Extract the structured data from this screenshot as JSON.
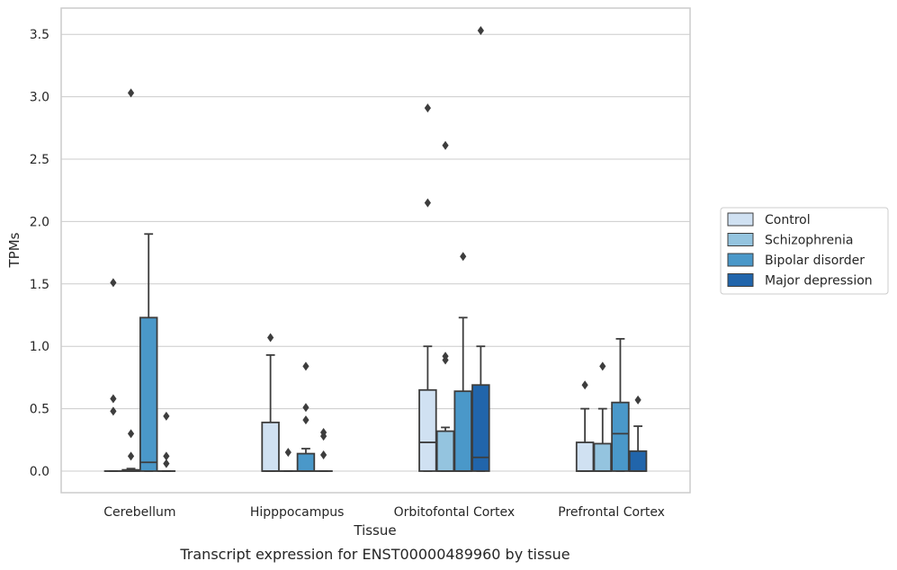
{
  "caption": "Transcript expression for ENST00000489960 by tissue",
  "chart_data": {
    "type": "box",
    "xlabel": "Tissue",
    "ylabel": "TPMs",
    "ylim": [
      -0.17,
      3.72
    ],
    "yticks": [
      0.0,
      0.5,
      1.0,
      1.5,
      2.0,
      2.5,
      3.0,
      3.5
    ],
    "ytick_labels": [
      "0.0",
      "0.5",
      "1.0",
      "1.5",
      "2.0",
      "2.5",
      "3.0",
      "3.5"
    ],
    "grid": "horizontal",
    "legend_position": "right",
    "categories": [
      "Cerebellum",
      "Hipppocampus",
      "Orbitofontal Cortex",
      "Prefrontal Cortex"
    ],
    "series": [
      {
        "name": "Control",
        "color": "#d0e1f2",
        "boxes": [
          {
            "q1": 0.0,
            "median": 0.0,
            "q3": 0.0,
            "whisker_low": 0.0,
            "whisker_high": 0.0,
            "outliers": [
              1.51,
              0.58,
              0.48
            ]
          },
          {
            "q1": 0.0,
            "median": 0.0,
            "q3": 0.39,
            "whisker_low": 0.0,
            "whisker_high": 0.93,
            "outliers": [
              1.07
            ]
          },
          {
            "q1": 0.0,
            "median": 0.23,
            "q3": 0.65,
            "whisker_low": 0.0,
            "whisker_high": 1.0,
            "outliers": [
              2.91,
              2.15
            ]
          },
          {
            "q1": 0.0,
            "median": 0.0,
            "q3": 0.23,
            "whisker_low": 0.0,
            "whisker_high": 0.5,
            "outliers": [
              0.69
            ]
          }
        ]
      },
      {
        "name": "Schizophrenia",
        "color": "#94c4df",
        "boxes": [
          {
            "q1": 0.0,
            "median": 0.0,
            "q3": 0.01,
            "whisker_low": 0.0,
            "whisker_high": 0.02,
            "outliers": [
              3.03,
              0.3,
              0.12
            ]
          },
          {
            "q1": 0.0,
            "median": 0.0,
            "q3": 0.0,
            "whisker_low": 0.0,
            "whisker_high": 0.0,
            "outliers": [
              0.15
            ]
          },
          {
            "q1": 0.0,
            "median": 0.0,
            "q3": 0.32,
            "whisker_low": 0.0,
            "whisker_high": 0.35,
            "outliers": [
              2.61,
              0.92,
              0.89
            ]
          },
          {
            "q1": 0.0,
            "median": 0.0,
            "q3": 0.22,
            "whisker_low": 0.0,
            "whisker_high": 0.5,
            "outliers": [
              0.84
            ]
          }
        ]
      },
      {
        "name": "Bipolar disorder",
        "color": "#4a98c9",
        "boxes": [
          {
            "q1": 0.0,
            "median": 0.07,
            "q3": 1.23,
            "whisker_low": 0.0,
            "whisker_high": 1.9,
            "outliers": []
          },
          {
            "q1": 0.0,
            "median": 0.0,
            "q3": 0.14,
            "whisker_low": 0.0,
            "whisker_high": 0.18,
            "outliers": [
              0.84,
              0.51,
              0.41
            ]
          },
          {
            "q1": 0.0,
            "median": 0.0,
            "q3": 0.64,
            "whisker_low": 0.0,
            "whisker_high": 1.23,
            "outliers": [
              1.72
            ]
          },
          {
            "q1": 0.0,
            "median": 0.3,
            "q3": 0.55,
            "whisker_low": 0.0,
            "whisker_high": 1.06,
            "outliers": []
          }
        ]
      },
      {
        "name": "Major depression",
        "color": "#2165ab",
        "boxes": [
          {
            "q1": 0.0,
            "median": 0.0,
            "q3": 0.0,
            "whisker_low": 0.0,
            "whisker_high": 0.0,
            "outliers": [
              0.44,
              0.12,
              0.06
            ]
          },
          {
            "q1": 0.0,
            "median": 0.0,
            "q3": 0.0,
            "whisker_low": 0.0,
            "whisker_high": 0.0,
            "outliers": [
              0.31,
              0.28,
              0.13
            ]
          },
          {
            "q1": 0.0,
            "median": 0.11,
            "q3": 0.69,
            "whisker_low": 0.0,
            "whisker_high": 1.0,
            "outliers": [
              3.53
            ]
          },
          {
            "q1": 0.0,
            "median": 0.0,
            "q3": 0.16,
            "whisker_low": 0.0,
            "whisker_high": 0.36,
            "outliers": [
              0.57
            ]
          }
        ]
      }
    ]
  }
}
